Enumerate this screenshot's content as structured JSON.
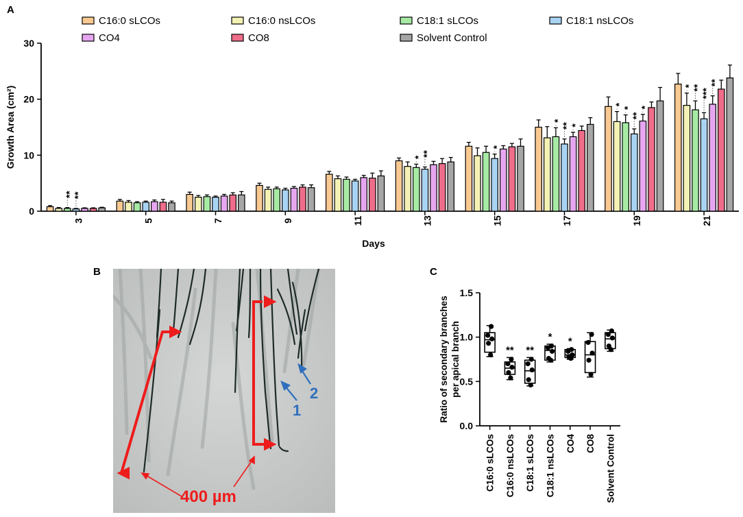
{
  "panels": {
    "a": "A",
    "b": "B",
    "c": "C"
  },
  "colors": {
    "c160s": "#f9c992",
    "c160ns": "#f3f1b4",
    "c181s": "#a6eaa4",
    "c181ns": "#a9d3f2",
    "co4": "#e5a6ef",
    "co8": "#ee6d8a",
    "solvent": "#a6a6a6",
    "annotation_red": "#ee1c1c",
    "annotation_blue": "#2f6fbd",
    "micro_bg": "#c9cccb",
    "hypha": "#1d2a28"
  },
  "legend": [
    {
      "label": "C16:0 sLCOs",
      "color": "#f9c992"
    },
    {
      "label": "C16:0 nsLCOs",
      "color": "#f3f1b4"
    },
    {
      "label": "C18:1 sLCOs",
      "color": "#a6eaa4"
    },
    {
      "label": "C18:1 nsLCOs",
      "color": "#a9d3f2"
    },
    {
      "label": "CO4",
      "color": "#e5a6ef"
    },
    {
      "label": "CO8",
      "color": "#ee6d8a"
    },
    {
      "label": "Solvent Control",
      "color": "#a6a6a6"
    }
  ],
  "chart_data": [
    {
      "panel": "A",
      "type": "bar",
      "xlabel": "Days",
      "ylabel": "Growth Area (cm²)",
      "ylim": [
        0,
        30
      ],
      "yticks": [
        0,
        10,
        20,
        30
      ],
      "categories": [
        "3",
        "5",
        "7",
        "9",
        "11",
        "13",
        "15",
        "17",
        "19",
        "21"
      ],
      "series": [
        {
          "name": "C16:0 sLCOs",
          "values": [
            0.8,
            1.8,
            3.0,
            4.6,
            6.6,
            9.0,
            11.6,
            15.0,
            18.7,
            22.7
          ],
          "errors": [
            0.2,
            0.3,
            0.4,
            0.4,
            0.5,
            0.5,
            0.7,
            1.3,
            1.7,
            1.9
          ]
        },
        {
          "name": "C16:0 nsLCOs",
          "values": [
            0.5,
            1.6,
            2.5,
            3.9,
            5.8,
            8.0,
            9.9,
            13.1,
            16.0,
            18.9
          ],
          "errors": [
            0.15,
            0.3,
            0.3,
            0.4,
            0.5,
            0.8,
            1.4,
            2.0,
            1.8,
            2.2
          ]
        },
        {
          "name": "C18:1 sLCOs",
          "values": [
            0.5,
            1.5,
            2.6,
            4.0,
            5.7,
            7.8,
            10.5,
            13.3,
            15.8,
            18.1
          ],
          "errors": [
            0.15,
            0.2,
            0.3,
            0.3,
            0.4,
            0.6,
            1.1,
            1.6,
            1.4,
            1.6
          ]
        },
        {
          "name": "C18:1 nsLCOs",
          "values": [
            0.4,
            1.6,
            2.5,
            3.8,
            5.4,
            7.5,
            9.4,
            12.0,
            13.8,
            16.5
          ],
          "errors": [
            0.1,
            0.2,
            0.2,
            0.3,
            0.3,
            0.4,
            0.8,
            0.9,
            0.9,
            1.1
          ]
        },
        {
          "name": "CO4",
          "values": [
            0.5,
            1.7,
            2.7,
            4.1,
            6.0,
            8.3,
            11.1,
            13.3,
            16.1,
            19.1
          ],
          "errors": [
            0.1,
            0.3,
            0.3,
            0.3,
            0.4,
            0.6,
            0.6,
            0.8,
            1.2,
            1.5
          ]
        },
        {
          "name": "CO8",
          "values": [
            0.5,
            1.6,
            2.9,
            4.3,
            5.9,
            8.5,
            11.5,
            14.4,
            18.5,
            21.8
          ],
          "errors": [
            0.1,
            0.5,
            0.4,
            0.4,
            0.9,
            0.9,
            0.6,
            0.8,
            1.0,
            1.6
          ]
        },
        {
          "name": "Solvent Control",
          "values": [
            0.6,
            1.5,
            2.9,
            4.2,
            6.3,
            8.8,
            11.6,
            15.5,
            19.7,
            23.8
          ],
          "errors": [
            0.1,
            0.3,
            0.6,
            0.5,
            0.9,
            0.8,
            1.3,
            1.2,
            2.4,
            2.3
          ]
        }
      ],
      "significance": [
        {
          "category": "3",
          "series": "C18:1 sLCOs",
          "stars": "**"
        },
        {
          "category": "3",
          "series": "C18:1 nsLCOs",
          "stars": "**"
        },
        {
          "category": "13",
          "series": "C18:1 sLCOs",
          "stars": "*"
        },
        {
          "category": "13",
          "series": "C18:1 nsLCOs",
          "stars": "**"
        },
        {
          "category": "15",
          "series": "C18:1 nsLCOs",
          "stars": "*"
        },
        {
          "category": "17",
          "series": "C18:1 sLCOs",
          "stars": "*"
        },
        {
          "category": "17",
          "series": "C18:1 nsLCOs",
          "stars": "**"
        },
        {
          "category": "17",
          "series": "CO4",
          "stars": "*"
        },
        {
          "category": "19",
          "series": "C16:0 nsLCOs",
          "stars": "*"
        },
        {
          "category": "19",
          "series": "C18:1 sLCOs",
          "stars": "*"
        },
        {
          "category": "19",
          "series": "C18:1 nsLCOs",
          "stars": "**"
        },
        {
          "category": "19",
          "series": "CO4",
          "stars": "*"
        },
        {
          "category": "21",
          "series": "C16:0 nsLCOs",
          "stars": "*"
        },
        {
          "category": "21",
          "series": "C18:1 sLCOs",
          "stars": "**"
        },
        {
          "category": "21",
          "series": "C18:1 nsLCOs",
          "stars": "***"
        },
        {
          "category": "21",
          "series": "CO4",
          "stars": "**"
        }
      ]
    },
    {
      "panel": "C",
      "type": "box",
      "ylabel_lines": [
        "Ratio of secondary branches",
        "per apical branch"
      ],
      "ylim": [
        0,
        1.5
      ],
      "yticks": [
        "0.0",
        "0.5",
        "1.0",
        "1.5"
      ],
      "categories": [
        "C16:0 sLCOs",
        "C16:0 nsLCOs",
        "C18:1 sLCOs",
        "C18:1 nsLCOs",
        "CO4",
        "CO8",
        "Solvent Control"
      ],
      "boxes": [
        {
          "min": 0.78,
          "q1": 0.83,
          "median": 0.97,
          "q3": 1.05,
          "max": 1.13,
          "points": [
            1.12,
            1.02,
            0.98,
            0.93,
            0.8
          ]
        },
        {
          "min": 0.52,
          "q1": 0.58,
          "median": 0.65,
          "q3": 0.72,
          "max": 0.77,
          "points": [
            0.75,
            0.7,
            0.66,
            0.6,
            0.54
          ]
        },
        {
          "min": 0.45,
          "q1": 0.48,
          "median": 0.62,
          "q3": 0.74,
          "max": 0.77,
          "points": [
            0.75,
            0.7,
            0.63,
            0.52,
            0.46
          ]
        },
        {
          "min": 0.72,
          "q1": 0.74,
          "median": 0.85,
          "q3": 0.9,
          "max": 0.92,
          "points": [
            0.9,
            0.88,
            0.84,
            0.76,
            0.74
          ]
        },
        {
          "min": 0.75,
          "q1": 0.77,
          "median": 0.8,
          "q3": 0.86,
          "max": 0.87,
          "points": [
            0.86,
            0.84,
            0.8,
            0.78,
            0.76
          ]
        },
        {
          "min": 0.55,
          "q1": 0.6,
          "median": 0.8,
          "q3": 0.95,
          "max": 1.05,
          "points": [
            1.03,
            0.94,
            0.82,
            0.74,
            0.58
          ]
        },
        {
          "min": 0.84,
          "q1": 0.87,
          "median": 0.98,
          "q3": 1.05,
          "max": 1.08,
          "points": [
            1.07,
            1.03,
            0.99,
            0.9,
            0.86
          ]
        }
      ],
      "significance": [
        "",
        "**",
        "**",
        "*",
        "*",
        "",
        ""
      ]
    }
  ],
  "micrograph": {
    "scale_label": "400 µm",
    "arrow_labels": [
      "1",
      "2"
    ]
  }
}
